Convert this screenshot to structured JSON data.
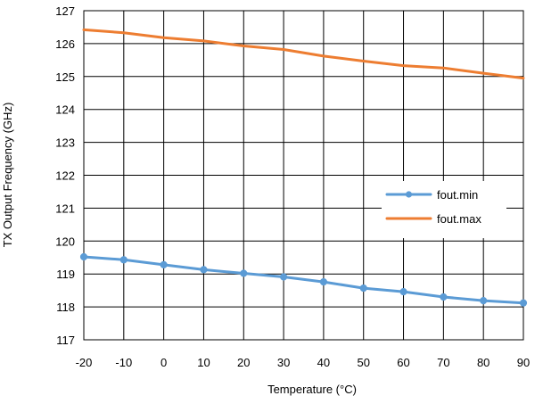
{
  "chart_data": {
    "type": "line",
    "title": "",
    "xlabel": "Temperature  (°C)",
    "ylabel": "TX Output Frequency  (GHz)",
    "xlim": [
      -20,
      90
    ],
    "ylim": [
      117,
      127
    ],
    "x_ticks": [
      -20,
      -10,
      0,
      10,
      20,
      30,
      40,
      50,
      60,
      70,
      80,
      90
    ],
    "y_ticks": [
      117,
      118,
      119,
      120,
      121,
      122,
      123,
      124,
      125,
      126,
      127
    ],
    "grid": true,
    "legend_position": "right",
    "x": [
      -20,
      -10,
      0,
      10,
      20,
      30,
      40,
      50,
      60,
      70,
      80,
      90
    ],
    "series": [
      {
        "name": "fout.min",
        "color": "#5B9BD5",
        "markers": true,
        "values": [
          119.52,
          119.43,
          119.28,
          119.13,
          119.02,
          118.91,
          118.76,
          118.57,
          118.46,
          118.3,
          118.19,
          118.12
        ]
      },
      {
        "name": "fout.max",
        "color": "#ED7D31",
        "markers": false,
        "values": [
          126.42,
          126.33,
          126.18,
          126.08,
          125.93,
          125.82,
          125.62,
          125.47,
          125.33,
          125.26,
          125.1,
          124.95
        ]
      }
    ]
  }
}
